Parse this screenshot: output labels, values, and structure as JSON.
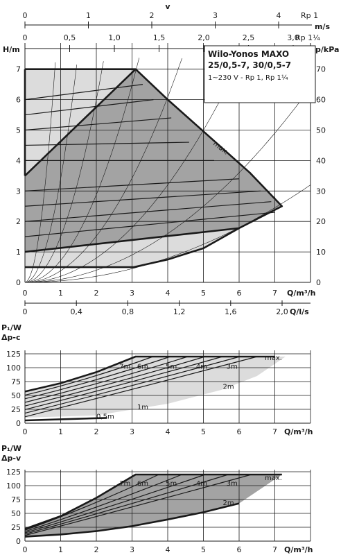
{
  "top_scales": {
    "v_label": "v",
    "v_ticks": [
      "0",
      "1",
      "2",
      "3",
      "4"
    ],
    "rp1": "Rp 1",
    "ms_unit": "m/s",
    "ms_ticks": [
      "0",
      "0,5",
      "1,0",
      "1,5",
      "2,0",
      "2,5",
      "3,0"
    ],
    "rp114": "Rp 1¼"
  },
  "header": {
    "title_line1": "Wilo-Yonos MAXO",
    "title_line2": "25/0,5-7, 30/0,5-7",
    "subtitle": "1~230 V - Rp 1, Rp 1¼"
  },
  "chart_data": [
    {
      "type": "line",
      "name": "head",
      "ylabel": "H/m",
      "y2label": "p/kPa",
      "xlabel": "Q/m³/h",
      "x2label": "Q/l/s",
      "xlim": [
        0,
        8
      ],
      "ylim": [
        0,
        7.5
      ],
      "x_ticks": [
        "0",
        "1",
        "2",
        "3",
        "4",
        "5",
        "6",
        "7"
      ],
      "y_ticks": [
        "0",
        "1",
        "2",
        "3",
        "4",
        "5",
        "6",
        "7"
      ],
      "kpa_ticks": [
        "0",
        "10",
        "20",
        "30",
        "40",
        "50",
        "60",
        "70"
      ],
      "ls_ticks": [
        "0",
        "0,4",
        "0,8",
        "1,2",
        "1,6",
        "2,0"
      ],
      "max_label": "max.",
      "outline_dp_c": [
        [
          0,
          3.5
        ],
        [
          3.1,
          7.0
        ],
        [
          4.0,
          6.0
        ],
        [
          6.3,
          3.6
        ],
        [
          7.2,
          2.5
        ],
        [
          6.0,
          1.78
        ],
        [
          0,
          1.0
        ]
      ],
      "outline_dp_v": [
        [
          0,
          0.5
        ],
        [
          3.05,
          0.5
        ],
        [
          4.0,
          0.75
        ],
        [
          5.0,
          1.1
        ],
        [
          6.0,
          1.78
        ],
        [
          0,
          7.0
        ],
        [
          3.1,
          7.0
        ]
      ],
      "intermediate_curves": [
        {
          "from": [
            0,
            3.0
          ],
          "to": [
            6.0,
            3.4
          ]
        },
        {
          "from": [
            0,
            2.5
          ],
          "to": [
            6.6,
            3.0
          ]
        },
        {
          "from": [
            0,
            2.0
          ],
          "to": [
            6.9,
            2.65
          ]
        },
        {
          "from": [
            0,
            1.5
          ],
          "to": [
            7.0,
            2.3
          ]
        },
        {
          "from": [
            0,
            4.0
          ],
          "to": [
            5.3,
            4.0
          ]
        },
        {
          "from": [
            0,
            4.5
          ],
          "to": [
            4.6,
            4.6
          ]
        },
        {
          "from": [
            0,
            5.0
          ],
          "to": [
            4.1,
            5.4
          ]
        },
        {
          "from": [
            0,
            5.5
          ],
          "to": [
            3.6,
            6.0
          ]
        },
        {
          "from": [
            0,
            6.0
          ],
          "to": [
            3.3,
            6.5
          ]
        }
      ],
      "system_curves_k": [
        10,
        3.4,
        1.5,
        0.72,
        0.38,
        0.2,
        0.1,
        0.05
      ]
    },
    {
      "type": "line",
      "name": "power-dp-c",
      "ylabel": "P₁/W",
      "mode_label": "Δp-c",
      "xlabel": "Q/m³/h",
      "xlim": [
        0,
        8
      ],
      "ylim": [
        0,
        140
      ],
      "x_ticks": [
        "0",
        "1",
        "2",
        "3",
        "4",
        "5",
        "6",
        "7"
      ],
      "y_ticks": [
        "0",
        "25",
        "50",
        "75",
        "100",
        "125"
      ],
      "max_label": "max.",
      "curve_labels": [
        "7m",
        "6m",
        "5m",
        "4m",
        "3m",
        "2m",
        "1m",
        "0,5m"
      ],
      "max_curve": [
        [
          0,
          57
        ],
        [
          1,
          72
        ],
        [
          2,
          92
        ],
        [
          3.1,
          120
        ],
        [
          7,
          120
        ]
      ],
      "min_curve": [
        [
          0,
          5
        ],
        [
          1,
          7
        ],
        [
          2.3,
          9.5
        ]
      ],
      "region_lower": [
        [
          0,
          10
        ],
        [
          2,
          14
        ],
        [
          4,
          35
        ],
        [
          5.5,
          60
        ],
        [
          6.5,
          85
        ],
        [
          7.3,
          120
        ]
      ]
    },
    {
      "type": "line",
      "name": "power-dp-v",
      "ylabel": "P₁/W",
      "mode_label": "Δp-v",
      "xlabel": "Q/m³/h",
      "xlim": [
        0,
        8
      ],
      "ylim": [
        0,
        140
      ],
      "x_ticks": [
        "0",
        "1",
        "2",
        "3",
        "4",
        "5",
        "6",
        "7"
      ],
      "y_ticks": [
        "0",
        "25",
        "50",
        "75",
        "100",
        "125"
      ],
      "max_label": "max.",
      "curve_labels": [
        "7m",
        "6m",
        "5m",
        "4m",
        "3m",
        "2m"
      ],
      "max_curve": [
        [
          0,
          22
        ],
        [
          1,
          45
        ],
        [
          2,
          78
        ],
        [
          3.1,
          120
        ],
        [
          7.2,
          120
        ]
      ],
      "min_curve": [
        [
          0,
          8
        ],
        [
          1,
          12
        ],
        [
          2,
          18
        ],
        [
          3,
          27
        ],
        [
          4,
          39
        ],
        [
          5,
          52
        ],
        [
          6,
          68
        ]
      ]
    }
  ]
}
